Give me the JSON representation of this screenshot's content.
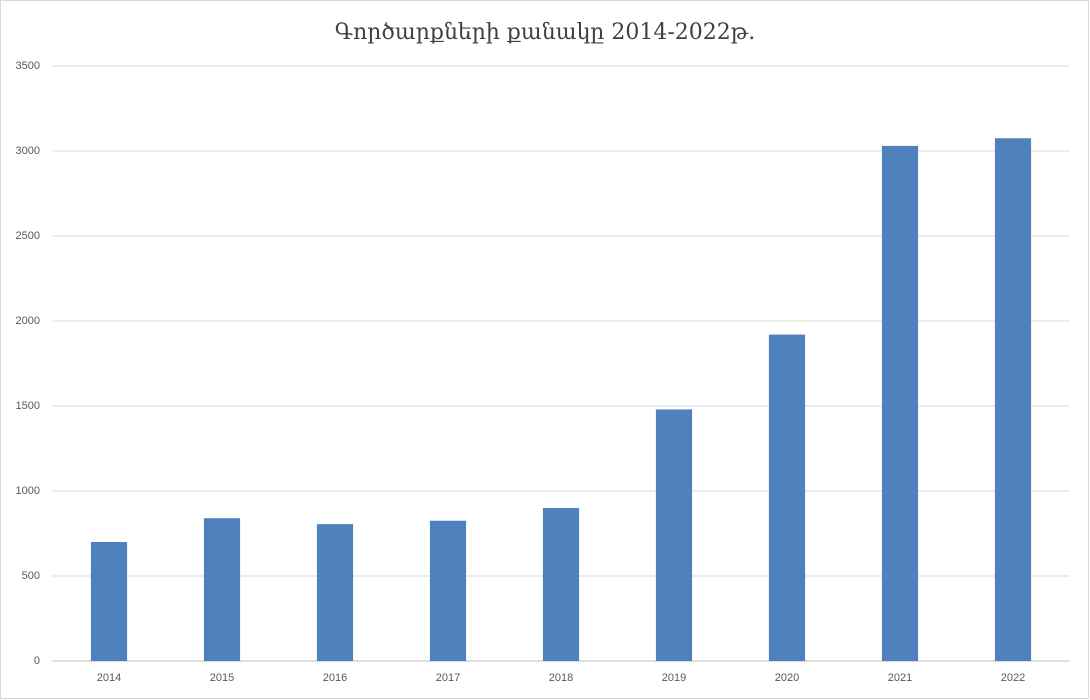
{
  "chart_data": {
    "type": "bar",
    "title": "Գործարքների քանակը 2014-2022թ.",
    "categories": [
      "2014",
      "2015",
      "2016",
      "2017",
      "2018",
      "2019",
      "2020",
      "2021",
      "2022"
    ],
    "values": [
      700,
      840,
      805,
      825,
      900,
      1480,
      1920,
      3030,
      3075
    ],
    "color": "#4f81bd",
    "ylim": [
      0,
      3500
    ],
    "yticks": [
      0,
      500,
      1000,
      1500,
      2000,
      2500,
      3000,
      3500
    ],
    "grid": true
  }
}
